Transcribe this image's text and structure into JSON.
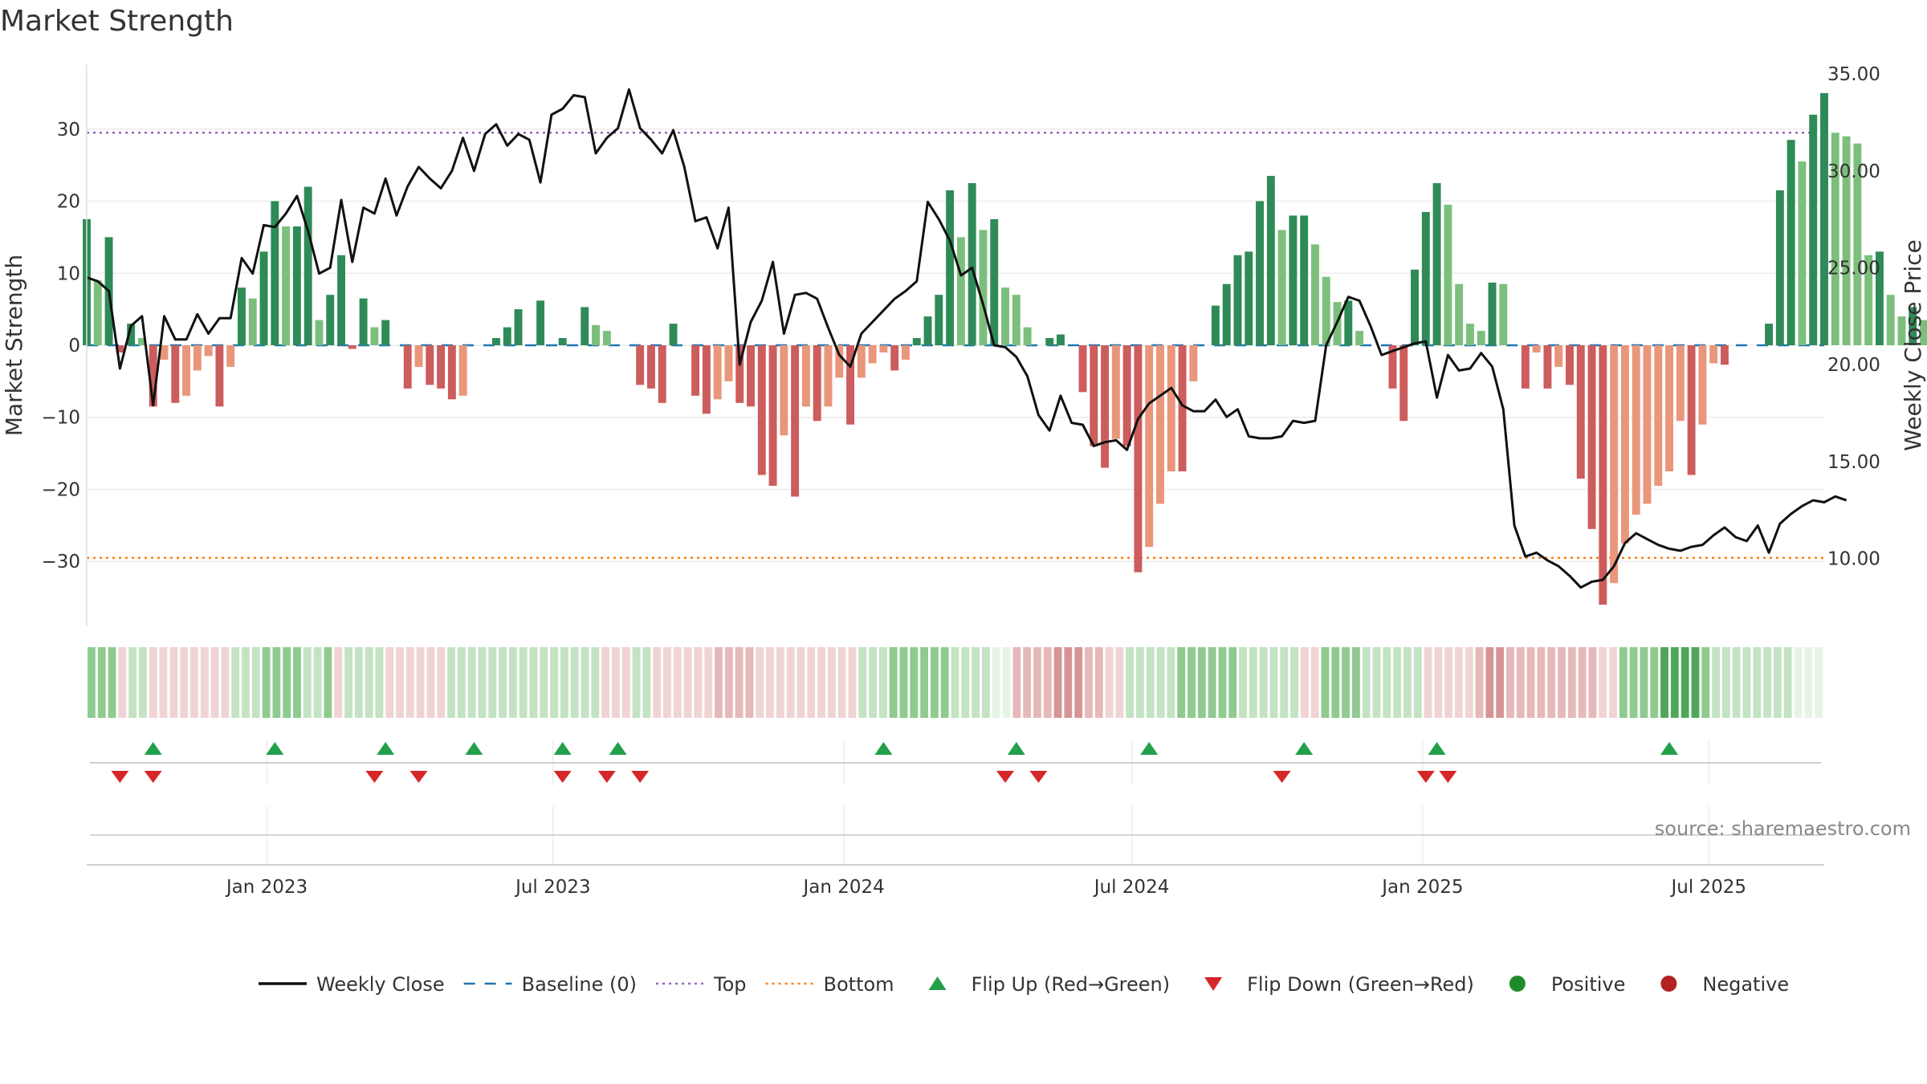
{
  "title": "Market Strength",
  "source": "source: sharemaestro.com",
  "colors": {
    "pos_strong": "#2e8b57",
    "pos_weak": "#7cbf7c",
    "neg_strong": "#cd5c5c",
    "neg_weak": "#e9967a",
    "close": "#111111",
    "baseline": "#1f77b4",
    "top": "#9467bd",
    "bottom": "#ff7f0e",
    "flip_up": "#22a04a",
    "flip_down": "#d62728",
    "positive": "#1f8c2a",
    "negative": "#b22222"
  },
  "legend": [
    {
      "key": "close",
      "label": "Weekly Close",
      "kind": "line"
    },
    {
      "key": "baseline",
      "label": "Baseline (0)",
      "kind": "dash"
    },
    {
      "key": "top",
      "label": "Top",
      "kind": "dot"
    },
    {
      "key": "bottom",
      "label": "Bottom",
      "kind": "dot"
    },
    {
      "key": "flip_up",
      "label": "Flip Up (Red→Green)",
      "kind": "up"
    },
    {
      "key": "flip_down",
      "label": "Flip Down (Green→Red)",
      "kind": "down"
    },
    {
      "key": "positive",
      "label": "Positive",
      "kind": "dot-circle"
    },
    {
      "key": "negative",
      "label": "Negative",
      "kind": "dot-circle"
    }
  ],
  "chart_data": {
    "type": "bar",
    "ylabel_left": "Market Strength",
    "ylabel_right": "Weekly Close Price",
    "ylim_left": [
      -39,
      39
    ],
    "ylim_right": [
      6.5,
      35.5
    ],
    "yticks_left": [
      30,
      20,
      10,
      0,
      -10,
      -20,
      -30
    ],
    "yticks_left_labels": [
      "30",
      "20",
      "10",
      "0",
      "−10",
      "−20",
      "−30"
    ],
    "yticks_right": [
      35,
      30,
      25,
      20,
      15,
      10
    ],
    "yticks_right_labels": [
      "35.00",
      "30.00",
      "25.00",
      "20.00",
      "15.00",
      "10.00"
    ],
    "x_range": [
      "2022-09-09",
      "2025-09-12"
    ],
    "x_ticks": [
      "2023-01-01",
      "2023-07-01",
      "2024-01-01",
      "2024-07-01",
      "2025-01-01",
      "2025-07-01"
    ],
    "x_tick_labels": [
      "Jan 2023",
      "Jul 2023",
      "Jan 2024",
      "Jul 2024",
      "Jan 2025",
      "Jul 2025"
    ],
    "top_level": 29.5,
    "bottom_level": -29.5,
    "baseline": 0,
    "start_date": "2022-09-09",
    "strength": [
      17.5,
      9,
      15,
      -1,
      3,
      1,
      -8.5,
      -2,
      -8,
      -7,
      -3.5,
      -1.5,
      -8.5,
      -3,
      8,
      6.5,
      13,
      20,
      16.5,
      16.5,
      22,
      3.5,
      7,
      12.5,
      -0.5,
      6.5,
      2.5,
      3.5,
      0,
      -6,
      -3,
      -5.5,
      -6,
      -7.5,
      -7,
      0,
      0,
      1,
      2.5,
      5,
      0,
      6.2,
      0,
      1,
      0,
      5.3,
      2.8,
      2,
      0,
      0,
      -5.5,
      -6,
      -8,
      3,
      0,
      -7,
      -9.5,
      -7.5,
      -5,
      -8,
      -8.5,
      -18,
      -19.5,
      -12.5,
      -21,
      -8.5,
      -10.5,
      -8.5,
      -4.5,
      -11,
      -4.5,
      -2.5,
      -1,
      -3.5,
      -2,
      1,
      4,
      7,
      21.5,
      15,
      22.5,
      16,
      17.5,
      8,
      7,
      2.5,
      0,
      1,
      1.5,
      0,
      -6.5,
      -14,
      -17,
      -13,
      -14,
      -31.5,
      -28,
      -22,
      -17.5,
      -17.5,
      -5,
      0,
      5.5,
      8.5,
      12.5,
      13,
      20,
      23.5,
      16,
      18,
      18,
      14,
      9.5,
      6,
      6.2,
      2,
      0,
      0,
      -6,
      -10.5,
      10.5,
      18.5,
      22.5,
      19.5,
      8.5,
      3,
      2,
      8.7,
      8.5,
      0,
      -6,
      -1,
      -6,
      -3,
      -5.5,
      -18.5,
      -25.5,
      -36,
      -33,
      -27.5,
      -23.5,
      -22,
      -19.5,
      -17.5,
      -10.5,
      -18,
      -11,
      -2.5,
      -2.7,
      0,
      0,
      0,
      3,
      21.5,
      28.5,
      25.5,
      32,
      35,
      29.5,
      29,
      28,
      12.5,
      13,
      7,
      4,
      5.3,
      3.5,
      5.2,
      1.5
    ],
    "close": [
      24.5,
      24.3,
      23.8,
      19.8,
      22,
      22.5,
      17.9,
      22.5,
      21.3,
      21.3,
      22.6,
      21.6,
      22.4,
      22.4,
      25.5,
      24.7,
      27.2,
      27.1,
      27.8,
      28.7,
      26.9,
      24.7,
      25,
      28.5,
      25.3,
      28.1,
      27.8,
      29.6,
      27.7,
      29.2,
      30.2,
      29.6,
      29.1,
      30,
      31.7,
      30,
      31.9,
      32.4,
      31.3,
      31.9,
      31.6,
      29.4,
      32.9,
      33.2,
      33.9,
      33.8,
      30.9,
      31.7,
      32.2,
      34.2,
      32.2,
      31.6,
      30.9,
      32.1,
      30.2,
      27.4,
      27.6,
      26,
      28.1,
      20,
      22.2,
      23.3,
      25.3,
      21.6,
      23.6,
      23.7,
      23.4,
      21.9,
      20.5,
      19.9,
      21.6,
      22.2,
      22.8,
      23.4,
      23.8,
      24.3,
      28.4,
      27.5,
      26.4,
      24.6,
      25,
      23.1,
      21,
      20.9,
      20.4,
      19.4,
      17.4,
      16.6,
      18.4,
      17,
      16.9,
      15.8,
      16,
      16.1,
      15.6,
      17.2,
      18,
      18.4,
      18.8,
      17.9,
      17.6,
      17.6,
      18.2,
      17.3,
      17.7,
      16.3,
      16.2,
      16.2,
      16.3,
      17.1,
      17,
      17.1,
      21,
      22.2,
      23.5,
      23.3,
      22,
      20.5,
      20.7,
      20.9,
      21.1,
      21.2,
      18.3,
      20.5,
      19.7,
      19.8,
      20.6,
      19.9,
      17.7,
      11.7,
      10.1,
      10.3,
      9.9,
      9.6,
      9.1,
      8.5,
      8.8,
      8.9,
      9.6,
      10.8,
      11.3,
      11,
      10.7,
      10.5,
      10.4,
      10.6,
      10.7,
      11.2,
      11.6,
      11.1,
      10.9,
      11.7,
      10.3,
      11.8,
      12.3,
      12.7,
      13,
      12.9,
      13.2,
      13
    ],
    "heat_levels": [
      2,
      2,
      2,
      0,
      1,
      1,
      0,
      0,
      0,
      0,
      0,
      0,
      0,
      0,
      1,
      1,
      1,
      2,
      2,
      2,
      2,
      1,
      1,
      2,
      0,
      1,
      1,
      1,
      1,
      0,
      0,
      0,
      0,
      0,
      0,
      1,
      1,
      1,
      1,
      1,
      1,
      1,
      1,
      1,
      1,
      1,
      1,
      1,
      1,
      1,
      0,
      0,
      0,
      1,
      1,
      0,
      0,
      0,
      0,
      0,
      0,
      1,
      1,
      1,
      1,
      0,
      0,
      0,
      0,
      0,
      0,
      0,
      0,
      0,
      0,
      1,
      1,
      1,
      2,
      2,
      2,
      2,
      2,
      2,
      1,
      1,
      1,
      1,
      0,
      0,
      1,
      1,
      1,
      1,
      2,
      2,
      2,
      1,
      1,
      0,
      0,
      1,
      1,
      1,
      1,
      1,
      2,
      2,
      2,
      2,
      2,
      2,
      1,
      1,
      1,
      1,
      1,
      1,
      0,
      0,
      2,
      2,
      2,
      2,
      1,
      1,
      1,
      1,
      1,
      1,
      0,
      0,
      0,
      0,
      0,
      1,
      2,
      2,
      1,
      1,
      1,
      1,
      1,
      1,
      1,
      1,
      1,
      0,
      0,
      2,
      2,
      2,
      2,
      3,
      3,
      3,
      3,
      2,
      1,
      1,
      1,
      1,
      1,
      1,
      1,
      1
    ],
    "flip_up_dates": [
      "2022-10-21",
      "2023-01-06",
      "2023-03-17",
      "2023-05-12",
      "2023-07-07",
      "2023-08-11",
      "2024-01-26",
      "2024-04-19",
      "2024-07-12",
      "2024-10-18",
      "2025-01-10",
      "2025-06-06"
    ],
    "flip_down_dates": [
      "2022-09-30",
      "2022-10-21",
      "2023-03-10",
      "2023-04-07",
      "2023-07-07",
      "2023-08-04",
      "2023-08-25",
      "2024-04-12",
      "2024-05-03",
      "2024-10-04",
      "2025-01-03",
      "2025-01-17"
    ]
  }
}
